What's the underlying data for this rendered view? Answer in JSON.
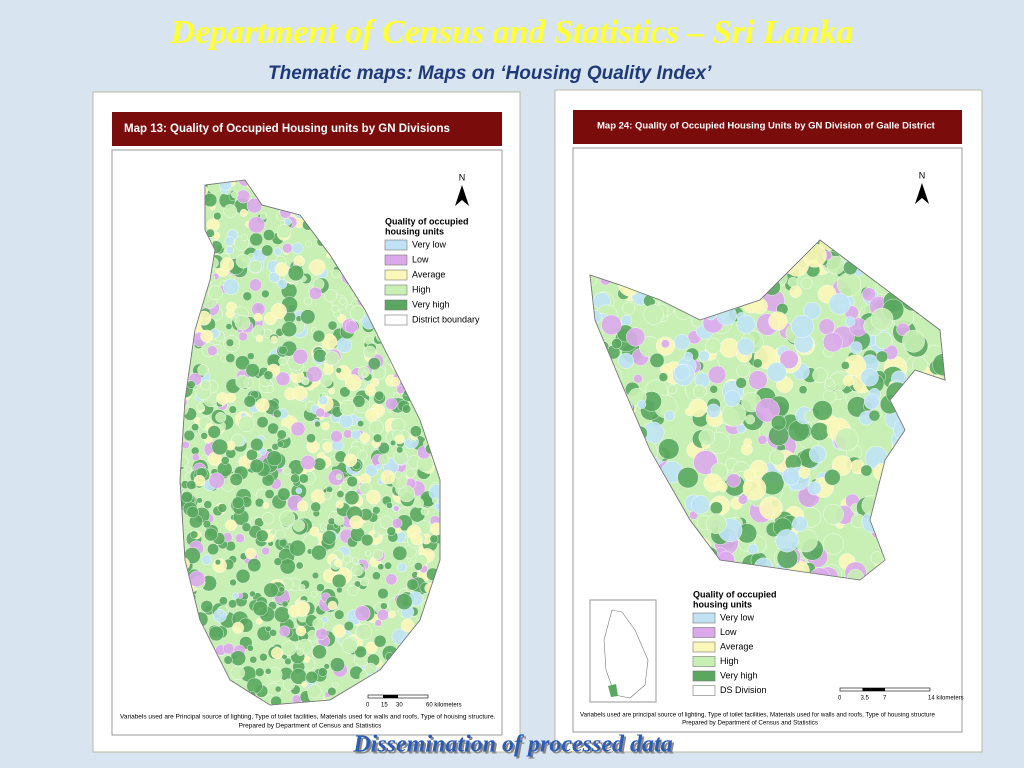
{
  "header": {
    "title": "Department of Census and Statistics – Sri Lanka",
    "subtitle": "Thematic maps: Maps on ‘Housing Quality Index’"
  },
  "maps": [
    {
      "title": "Map 13: Quality of Occupied Housing units by GN Divisions",
      "north": "N",
      "legend": {
        "title": [
          "Quality of occupied",
          "housing units"
        ],
        "items": [
          {
            "label": "Very low",
            "color": "#bfe3f5"
          },
          {
            "label": "Low",
            "color": "#dca8ec"
          },
          {
            "label": "Average",
            "color": "#fbf7b8"
          },
          {
            "label": "High",
            "color": "#c8f0b4"
          },
          {
            "label": "Very high",
            "color": "#5aa860"
          },
          {
            "label": "District boundary",
            "color": "#ffffff"
          }
        ]
      },
      "scale": [
        "0",
        "15",
        "30",
        "60 kilometers"
      ],
      "notes": [
        "Variabels used are Principal source of lighting, Type of toilet facilities, Materials used for walls and roofs, Type of housing structure.",
        "Prepared by Department of Census and Statistics"
      ]
    },
    {
      "title": "Map 24: Quality of Occupied Housing Units by GN Division of Galle District",
      "north": "N",
      "legend": {
        "title": [
          "Quality of occupied",
          "housing units"
        ],
        "items": [
          {
            "label": "Very low",
            "color": "#bfe3f5"
          },
          {
            "label": "Low",
            "color": "#dca8ec"
          },
          {
            "label": "Average",
            "color": "#fbf7b8"
          },
          {
            "label": "High",
            "color": "#c8f0b4"
          },
          {
            "label": "Very high",
            "color": "#5aa860"
          },
          {
            "label": "DS Division",
            "color": "#ffffff"
          }
        ]
      },
      "scale": [
        "0",
        "3.5",
        "7",
        "14 kilometers"
      ],
      "notes": [
        "Variabels used are principal source of lighting, Type of toilet facilities, Materials used for walls and roofs, Type of housing structure",
        "Prepared by Department of Census and Statistics"
      ]
    }
  ],
  "footer": "Dissemination of processed data"
}
